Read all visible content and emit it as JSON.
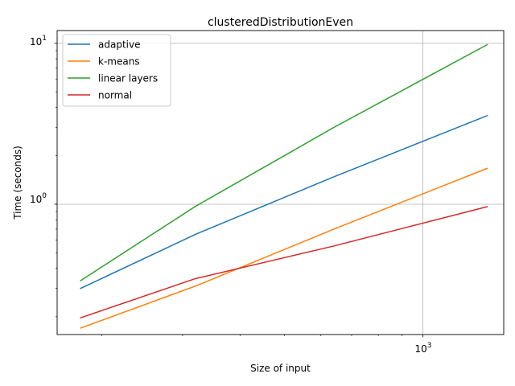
{
  "chart_data": {
    "type": "line",
    "title": "clusteredDistributionEven",
    "xlabel": "Size of input",
    "ylabel": "Time (seconds)",
    "xscale": "log",
    "yscale": "log",
    "xlim": [
      160,
      1500
    ],
    "ylim": [
      0.155,
      12
    ],
    "x_tick_label": "10",
    "x_tick_exp": "3",
    "y_tick_labels": [
      {
        "base": "10",
        "exp": "0"
      },
      {
        "base": "10",
        "exp": "1"
      }
    ],
    "grid": true,
    "legend_position": "top-left",
    "x": [
      180,
      320,
      640,
      1380
    ],
    "series": [
      {
        "name": "adaptive",
        "color": "#1f77b4",
        "values": [
          0.3,
          0.65,
          1.48,
          3.55
        ]
      },
      {
        "name": "k-means",
        "color": "#ff7f0e",
        "values": [
          0.17,
          0.31,
          0.7,
          1.67
        ]
      },
      {
        "name": "linear layers",
        "color": "#2ca02c",
        "values": [
          0.335,
          0.97,
          3.0,
          9.8
        ]
      },
      {
        "name": "normal",
        "color": "#d62728",
        "values": [
          0.197,
          0.345,
          0.55,
          0.965
        ]
      }
    ]
  }
}
